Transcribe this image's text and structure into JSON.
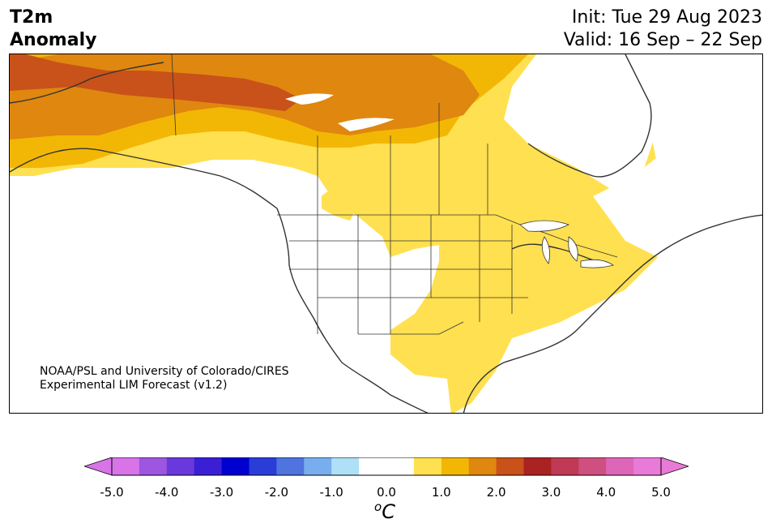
{
  "title": {
    "variable": "T2m",
    "subtitle": "Anomaly",
    "init": "Init: Tue 29 Aug 2023",
    "valid": "Valid: 16 Sep – 22 Sep"
  },
  "credit": {
    "line1": "NOAA/PSL and University of Colorado/CIRES",
    "line2": "Experimental LIM Forecast (v1.2)"
  },
  "colorbar": {
    "unit_super": "o",
    "unit_main": "C",
    "ticks": [
      "-5.0",
      "-4.0",
      "-3.0",
      "-2.0",
      "-1.0",
      "0.0",
      "1.0",
      "2.0",
      "3.0",
      "4.0",
      "5.0"
    ],
    "colors": [
      "#d873e8",
      "#9e55e0",
      "#6a39db",
      "#3a1fd4",
      "#0000d0",
      "#2a3dd8",
      "#4f74e0",
      "#78aeee",
      "#aee0f8",
      "#ffffff",
      "#ffffff",
      "#ffe050",
      "#f2b705",
      "#df870f",
      "#c8521a",
      "#aa2222",
      "#c03a55",
      "#cf4f80",
      "#de66b8",
      "#e97ad8"
    ],
    "extend_low": "#d873e8",
    "extend_high": "#e97ad8"
  },
  "map": {
    "region": "North America",
    "anomaly_colors": {
      "weak_warm": "#ffe050",
      "warm": "#f2b705",
      "warmer": "#df870f",
      "warmest": "#c8521a"
    }
  }
}
